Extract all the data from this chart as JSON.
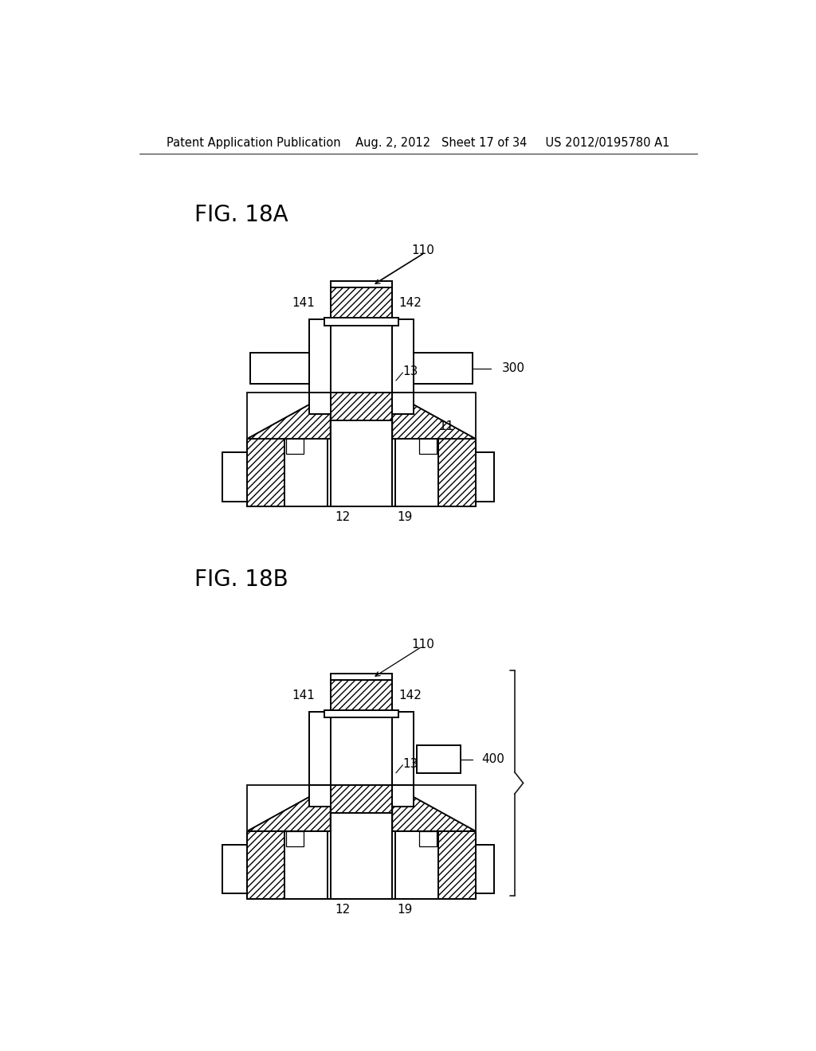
{
  "bg_color": "#ffffff",
  "lc": "#1a1a1a",
  "header": "Patent Application Publication    Aug. 2, 2012   Sheet 17 of 34     US 2012/0195780 A1",
  "header_fs": 10.5,
  "fig_label_fs": 20,
  "ref_fs": 11,
  "lw": 1.4,
  "fig18a_title": "FIG. 18A",
  "fig18b_title": "FIG. 18B"
}
